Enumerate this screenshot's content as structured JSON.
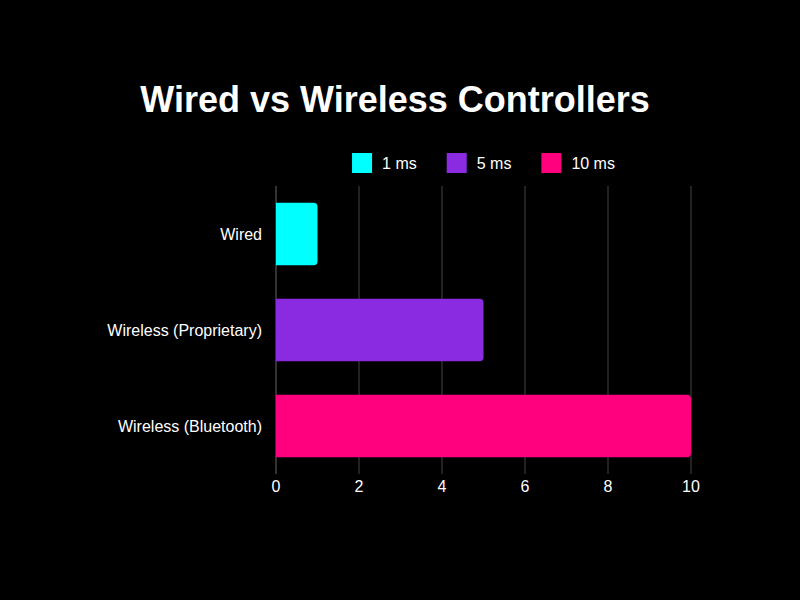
{
  "chart_data": {
    "type": "bar",
    "title": "Wired vs Wireless Controllers",
    "orientation": "horizontal",
    "stacked": true,
    "categories": [
      "Wired",
      "Wireless (Proprietary)",
      "Wireless (Bluetooth)"
    ],
    "series": [
      {
        "name": "1 ms",
        "color": "#00ffff",
        "values": [
          1,
          null,
          null
        ]
      },
      {
        "name": "5 ms",
        "color": "#8a2be2",
        "values": [
          null,
          5,
          null
        ]
      },
      {
        "name": "10 ms",
        "color": "#ff007f",
        "values": [
          null,
          null,
          10
        ]
      }
    ],
    "xlim": [
      0,
      10
    ],
    "xticks": [
      0,
      2,
      4,
      6,
      8,
      10
    ],
    "grid": true,
    "legend": "top"
  }
}
